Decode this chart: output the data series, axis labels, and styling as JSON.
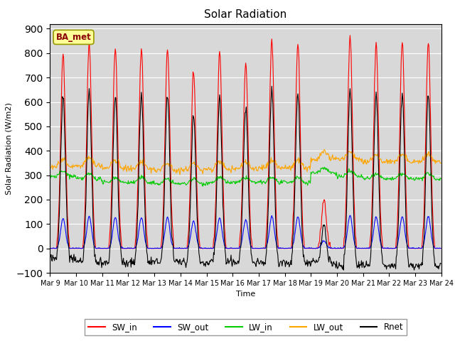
{
  "title": "Solar Radiation",
  "ylabel": "Solar Radiation (W/m2)",
  "xlabel": "Time",
  "station_label": "BA_met",
  "ylim": [
    -100,
    920
  ],
  "yticks": [
    -100,
    0,
    100,
    200,
    300,
    400,
    500,
    600,
    700,
    800,
    900
  ],
  "colors": {
    "SW_in": "#ff0000",
    "SW_out": "#0000ff",
    "LW_in": "#00cc00",
    "LW_out": "#ffa500",
    "Rnet": "#000000"
  },
  "background_color": "#d8d8d8",
  "fig_background": "#ffffff",
  "n_days": 15,
  "start_day": 9
}
